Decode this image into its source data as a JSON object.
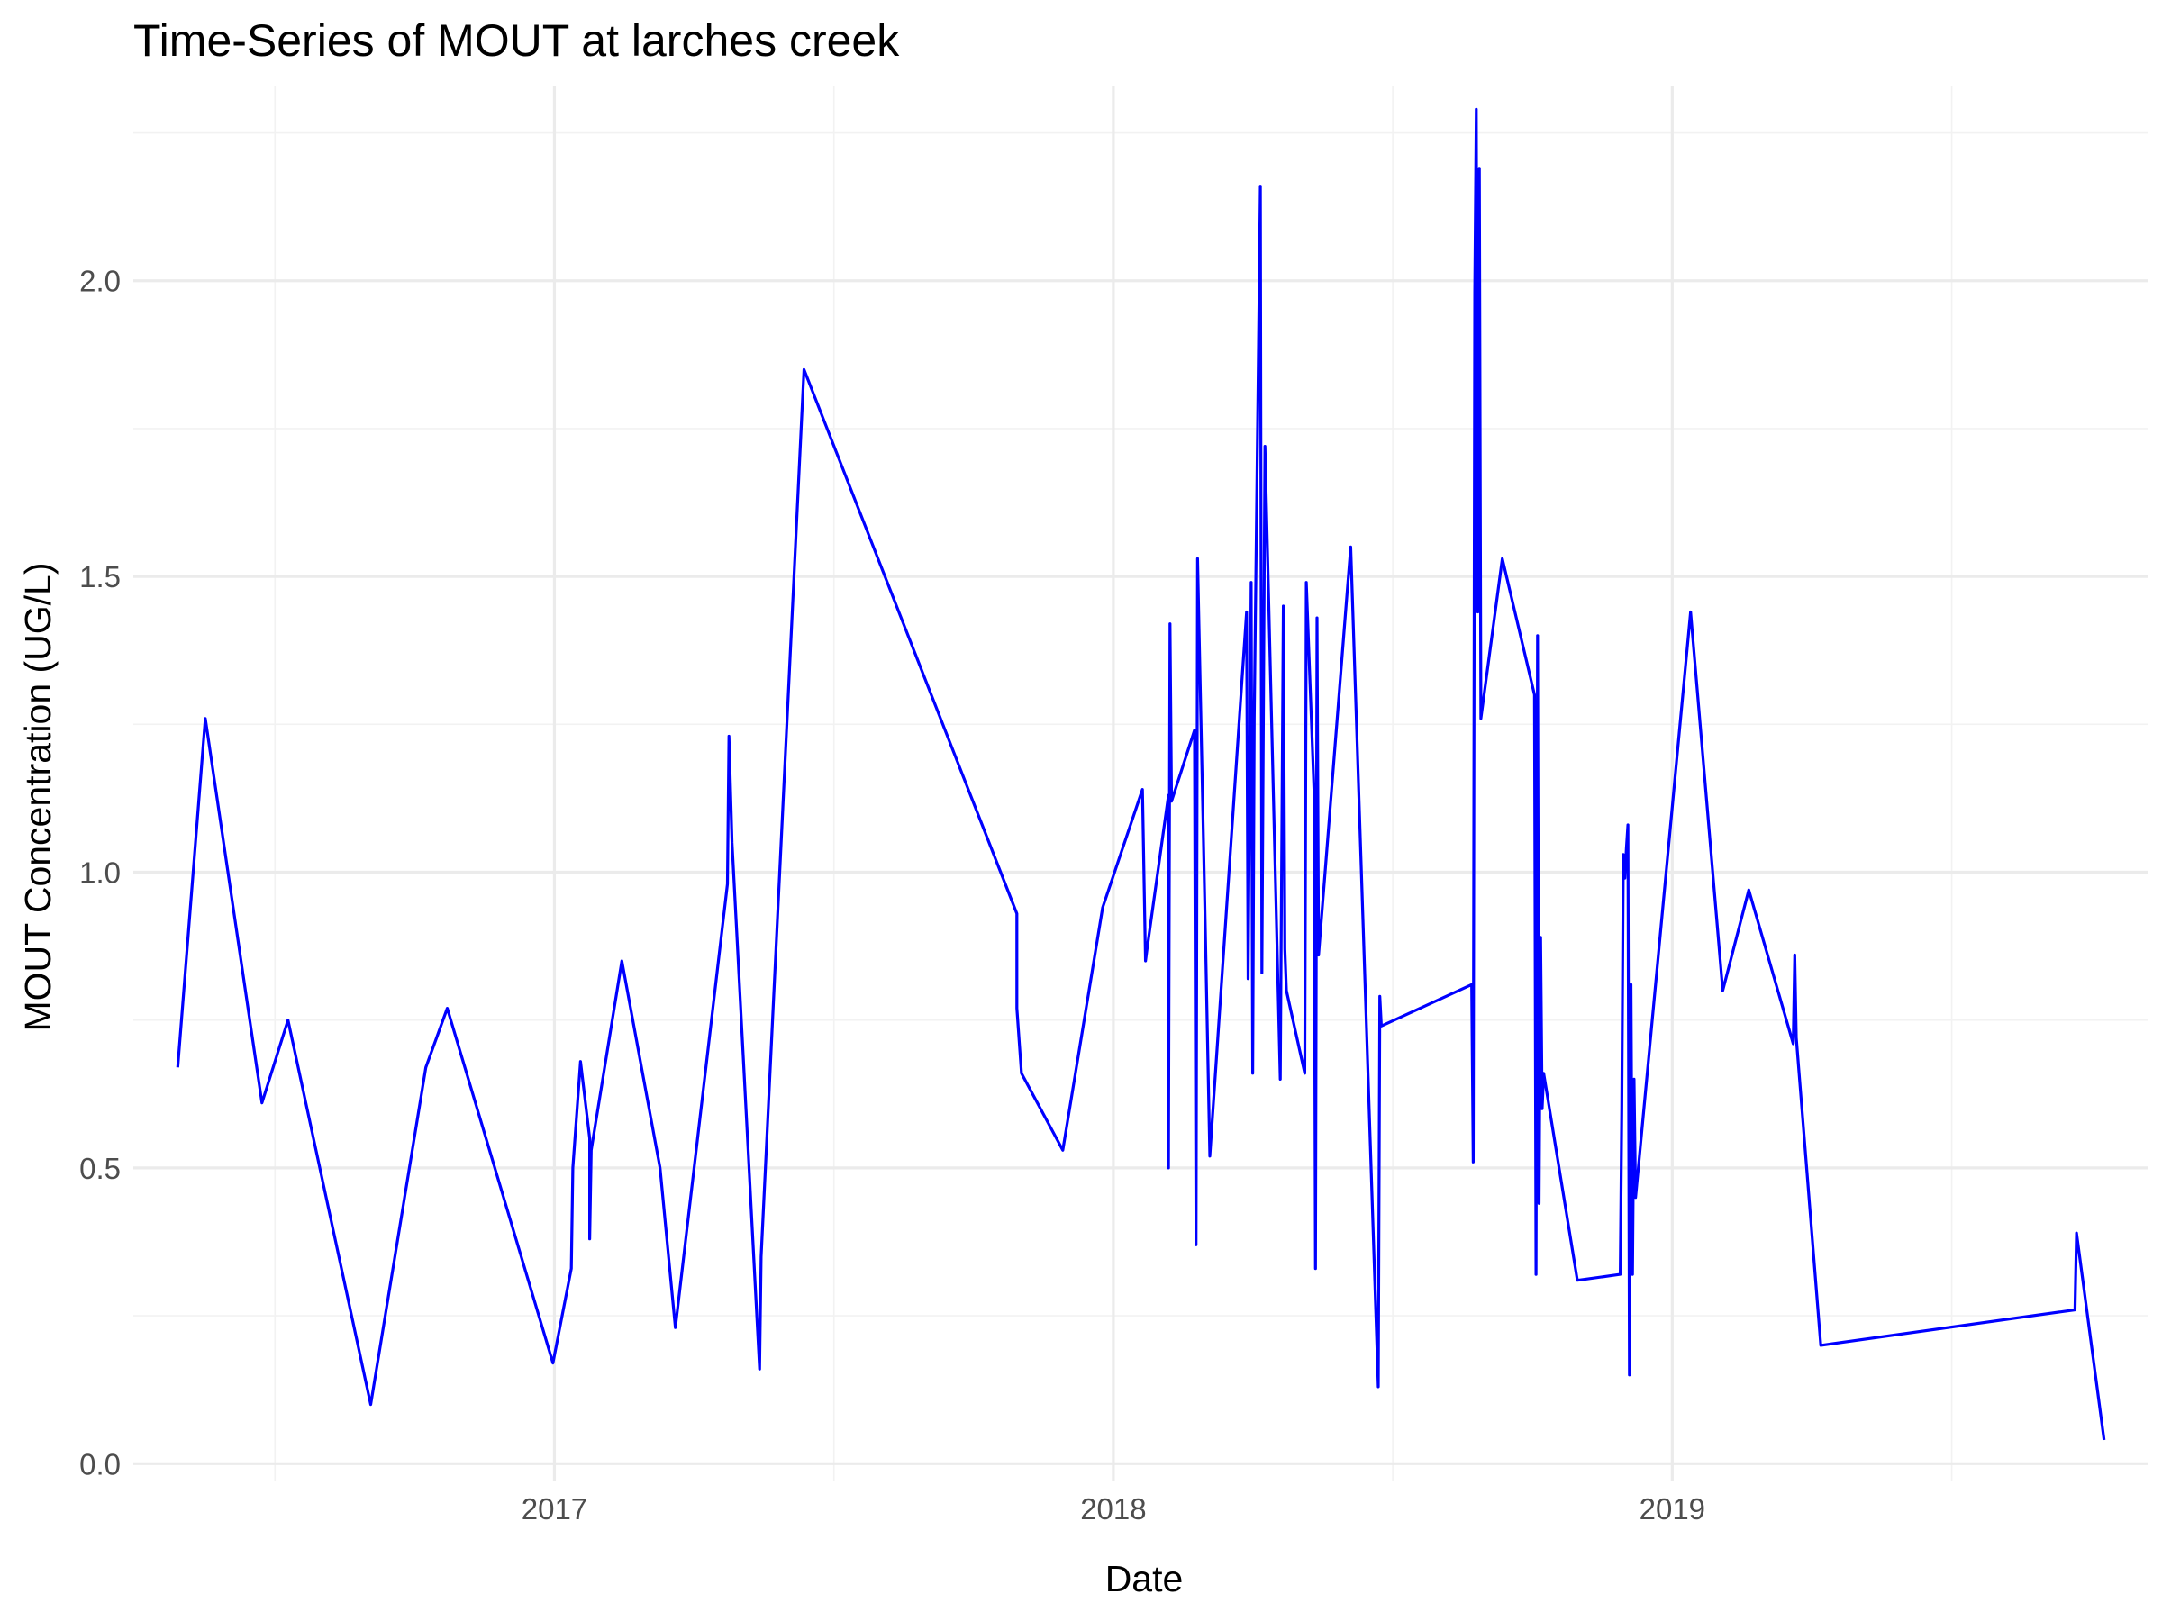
{
  "chart_data": {
    "type": "line",
    "title": "Time-Series of MOUT at larches creek",
    "xlabel": "Date",
    "ylabel": "MOUT Concentration (UG/L)",
    "x_tick_labels": [
      "2017",
      "2018",
      "2019"
    ],
    "x_ticks": [
      "2017-01-01",
      "2018-01-01",
      "2019-01-01"
    ],
    "y_tick_labels": [
      "0.0",
      "0.5",
      "1.0",
      "1.5",
      "2.0"
    ],
    "y_ticks": [
      0,
      0.5,
      1.0,
      1.5,
      2.0
    ],
    "xlim": [
      "2016-04-01",
      "2019-11-08"
    ],
    "ylim": [
      -0.03,
      2.33
    ],
    "grid": true,
    "legend": "none",
    "color": "#0000ff",
    "series": [
      {
        "x": [
          "2016-04-30",
          "2016-05-18",
          "2016-06-24",
          "2016-07-11",
          "2016-09-03",
          "2016-10-09",
          "2016-10-23",
          "2016-12-31",
          "2017-01-12",
          "2017-01-13",
          "2017-01-18",
          "2017-01-24",
          "2017-01-24",
          "2017-01-25",
          "2017-02-14",
          "2017-03-11",
          "2017-03-21",
          "2017-04-24",
          "2017-04-25",
          "2017-04-27",
          "2017-05-15",
          "2017-05-16",
          "2017-06-13",
          "2017-10-30",
          "2017-10-30",
          "2017-11-02",
          "2017-11-29",
          "2017-12-25",
          "2018-01-20",
          "2018-01-22",
          "2018-01-23",
          "2018-02-06",
          "2018-02-06",
          "2018-02-07",
          "2018-02-08",
          "2018-02-23",
          "2018-02-24",
          "2018-02-25",
          "2018-03-02",
          "2018-03-05",
          "2018-03-29",
          "2018-03-30",
          "2018-04-01",
          "2018-04-02",
          "2018-04-03",
          "2018-04-07",
          "2018-04-08",
          "2018-04-10",
          "2018-04-20",
          "2018-04-22",
          "2018-04-23",
          "2018-04-24",
          "2018-05-06",
          "2018-05-07",
          "2018-05-12",
          "2018-05-13",
          "2018-05-14",
          "2018-05-15",
          "2018-06-05",
          "2018-06-23",
          "2018-06-24",
          "2018-06-25",
          "2018-08-23",
          "2018-08-24",
          "2018-08-25",
          "2018-08-26",
          "2018-08-27",
          "2018-08-28",
          "2018-08-29",
          "2018-09-12",
          "2018-10-03",
          "2018-10-04",
          "2018-10-05",
          "2018-10-06",
          "2018-10-07",
          "2018-10-08",
          "2018-10-09",
          "2018-10-31",
          "2018-11-28",
          "2018-11-29",
          "2018-11-30",
          "2018-12-01",
          "2018-12-02",
          "2018-12-03",
          "2018-12-04",
          "2018-12-05",
          "2018-12-06",
          "2018-12-07",
          "2018-12-08",
          "2019-01-13",
          "2019-02-03",
          "2019-02-20",
          "2019-03-21",
          "2019-03-22",
          "2019-03-23",
          "2019-04-08",
          "2019-09-21",
          "2019-09-22",
          "2019-10-10"
        ],
        "y": [
          0.67,
          1.26,
          0.61,
          0.75,
          0.1,
          0.67,
          0.77,
          0.17,
          0.33,
          0.5,
          0.68,
          0.55,
          0.38,
          0.53,
          0.85,
          0.5,
          0.23,
          0.98,
          1.23,
          1.05,
          0.16,
          0.35,
          1.85,
          0.93,
          0.77,
          0.66,
          0.53,
          0.94,
          1.14,
          0.85,
          0.87,
          1.13,
          0.5,
          1.42,
          1.12,
          1.24,
          0.37,
          1.53,
          0.91,
          0.52,
          1.44,
          0.82,
          1.49,
          0.66,
          1.26,
          2.16,
          0.83,
          1.72,
          0.65,
          1.45,
          0.87,
          0.8,
          0.66,
          1.49,
          1.14,
          0.33,
          1.43,
          0.86,
          1.55,
          0.13,
          0.79,
          0.74,
          0.81,
          0.51,
          1.98,
          2.29,
          1.44,
          2.19,
          1.26,
          1.53,
          1.3,
          0.32,
          1.4,
          0.44,
          0.89,
          0.6,
          0.66,
          0.31,
          0.32,
          0.6,
          1.03,
          0.99,
          1.04,
          1.08,
          0.15,
          0.81,
          0.32,
          0.65,
          0.45,
          1.44,
          0.8,
          0.97,
          0.71,
          0.86,
          0.72,
          0.2,
          0.26,
          0.39,
          0.04
        ]
      }
    ]
  }
}
